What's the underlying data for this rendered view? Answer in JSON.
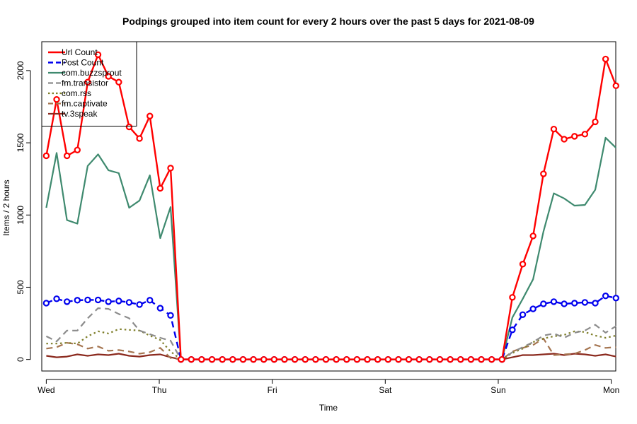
{
  "chart_data": {
    "type": "line",
    "title": "Podpings grouped into item count for every 2 hours  over the past 5 days for 2021-08-09",
    "xlabel": "Time",
    "ylabel": "Items / 2 hours",
    "x_ticks": [
      {
        "label": "Wed",
        "pos": 0
      },
      {
        "label": "Thu",
        "pos": 1
      },
      {
        "label": "Fri",
        "pos": 2
      },
      {
        "label": "Sat",
        "pos": 3
      },
      {
        "label": "Sun",
        "pos": 4
      },
      {
        "label": "Mon",
        "pos": 5
      }
    ],
    "xlim": [
      -0.04,
      5.04
    ],
    "ylim": [
      -80,
      2200
    ],
    "y_ticks": [
      0,
      500,
      1000,
      1500,
      2000
    ],
    "legend_position": "top-left",
    "x": [
      0.0,
      0.0917,
      0.1833,
      0.275,
      0.3667,
      0.4583,
      0.55,
      0.6417,
      0.7333,
      0.825,
      0.9167,
      1.0083,
      1.1,
      1.1917,
      1.2833,
      1.375,
      1.4667,
      1.5583,
      1.65,
      1.7417,
      1.8333,
      1.925,
      2.0167,
      2.1083,
      2.2,
      2.2917,
      2.3833,
      2.475,
      2.5667,
      2.6583,
      2.75,
      2.8417,
      2.9333,
      3.025,
      3.1167,
      3.2083,
      3.3,
      3.3917,
      3.4833,
      3.575,
      3.6667,
      3.7583,
      3.85,
      3.9417,
      4.0333,
      4.125,
      4.2167,
      4.3083,
      4.4,
      4.4917,
      4.5833,
      4.675,
      4.7667,
      4.8583,
      4.95,
      5.0417
    ],
    "series": [
      {
        "name": "Url Count",
        "color": "#ff0000",
        "dash": "solid",
        "width": 2.4,
        "markers": true,
        "values": [
          1410,
          1800,
          1410,
          1450,
          1920,
          2110,
          1960,
          1920,
          1610,
          1530,
          1685,
          1185,
          1325,
          0,
          0,
          0,
          0,
          0,
          0,
          0,
          0,
          0,
          0,
          0,
          0,
          0,
          0,
          0,
          0,
          0,
          0,
          0,
          0,
          0,
          0,
          0,
          0,
          0,
          0,
          0,
          0,
          0,
          0,
          0,
          0,
          430,
          660,
          855,
          1285,
          1595,
          1525,
          1545,
          1560,
          1645,
          2080,
          1895
        ]
      },
      {
        "name": "Post Count",
        "color": "#0000ee",
        "dash": "dashed",
        "width": 2.4,
        "markers": true,
        "values": [
          390,
          420,
          400,
          410,
          412,
          412,
          400,
          405,
          395,
          380,
          410,
          355,
          305,
          0,
          0,
          0,
          0,
          0,
          0,
          0,
          0,
          0,
          0,
          0,
          0,
          0,
          0,
          0,
          0,
          0,
          0,
          0,
          0,
          0,
          0,
          0,
          0,
          0,
          0,
          0,
          0,
          0,
          0,
          0,
          0,
          205,
          310,
          350,
          385,
          400,
          385,
          390,
          395,
          390,
          440,
          425
        ]
      },
      {
        "name": "com.buzzsprout",
        "color": "#3f8a6f",
        "dash": "solid",
        "width": 2.2,
        "markers": false,
        "values": [
          1050,
          1430,
          965,
          940,
          1340,
          1420,
          1310,
          1290,
          1050,
          1100,
          1275,
          840,
          1055,
          0,
          0,
          0,
          0,
          0,
          0,
          0,
          0,
          0,
          0,
          0,
          0,
          0,
          0,
          0,
          0,
          0,
          0,
          0,
          0,
          0,
          0,
          0,
          0,
          0,
          0,
          0,
          0,
          0,
          0,
          0,
          0,
          290,
          420,
          555,
          885,
          1150,
          1115,
          1065,
          1070,
          1175,
          1535,
          1465
        ]
      },
      {
        "name": "fm.transistor",
        "color": "#8c8c8c",
        "dash": "dashed",
        "width": 2.2,
        "markers": false,
        "values": [
          160,
          125,
          200,
          200,
          285,
          355,
          350,
          315,
          285,
          200,
          175,
          150,
          130,
          0,
          0,
          0,
          0,
          0,
          0,
          0,
          0,
          0,
          0,
          0,
          0,
          0,
          0,
          0,
          0,
          0,
          0,
          0,
          0,
          0,
          0,
          0,
          0,
          0,
          0,
          0,
          0,
          0,
          0,
          0,
          0,
          50,
          85,
          120,
          165,
          180,
          150,
          185,
          200,
          240,
          185,
          230
        ]
      },
      {
        "name": "com.rss",
        "color": "#7f7f2b",
        "dash": "dotted",
        "width": 2.2,
        "markers": false,
        "values": [
          110,
          110,
          115,
          110,
          160,
          195,
          180,
          210,
          205,
          200,
          165,
          135,
          55,
          0,
          0,
          0,
          0,
          0,
          0,
          0,
          0,
          0,
          0,
          0,
          0,
          0,
          0,
          0,
          0,
          0,
          0,
          0,
          0,
          0,
          0,
          0,
          0,
          0,
          0,
          0,
          0,
          0,
          0,
          0,
          0,
          45,
          75,
          120,
          145,
          160,
          170,
          195,
          190,
          165,
          150,
          165
        ]
      },
      {
        "name": "fm.captivate",
        "color": "#a57550",
        "dash": "dashed",
        "width": 2.2,
        "markers": false,
        "values": [
          75,
          85,
          115,
          105,
          75,
          90,
          60,
          65,
          55,
          40,
          50,
          80,
          10,
          0,
          0,
          0,
          0,
          0,
          0,
          0,
          0,
          0,
          0,
          0,
          0,
          0,
          0,
          0,
          0,
          0,
          0,
          0,
          0,
          0,
          0,
          0,
          0,
          0,
          0,
          0,
          0,
          0,
          0,
          0,
          0,
          55,
          80,
          100,
          145,
          30,
          35,
          40,
          65,
          100,
          80,
          85
        ]
      },
      {
        "name": "tv.3speak",
        "color": "#8b2a1e",
        "dash": "solid",
        "width": 2.2,
        "markers": false,
        "values": [
          25,
          15,
          20,
          35,
          25,
          35,
          30,
          40,
          25,
          20,
          30,
          35,
          15,
          0,
          0,
          0,
          0,
          0,
          0,
          0,
          0,
          0,
          0,
          0,
          0,
          0,
          0,
          0,
          0,
          0,
          0,
          0,
          0,
          0,
          0,
          0,
          0,
          0,
          0,
          0,
          0,
          0,
          0,
          0,
          0,
          15,
          30,
          30,
          35,
          40,
          30,
          40,
          35,
          25,
          35,
          20
        ]
      }
    ]
  }
}
